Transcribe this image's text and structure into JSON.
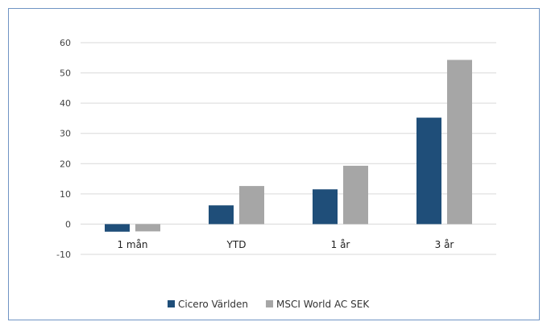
{
  "chart_data": {
    "type": "bar",
    "categories": [
      "1 mån",
      "YTD",
      "1 år",
      "3 år"
    ],
    "series": [
      {
        "name": "Cicero Världen",
        "values": [
          -2.5,
          6.2,
          11.5,
          35.2
        ],
        "color": "#1f4e79"
      },
      {
        "name": "MSCI World AC SEK",
        "values": [
          -2.4,
          12.6,
          19.3,
          54.3
        ],
        "color": "#a6a6a6"
      }
    ],
    "yticks": [
      -10,
      0,
      10,
      20,
      30,
      40,
      50,
      60
    ],
    "ylim": [
      -10,
      60
    ],
    "grid": true,
    "legend": "bottom"
  }
}
